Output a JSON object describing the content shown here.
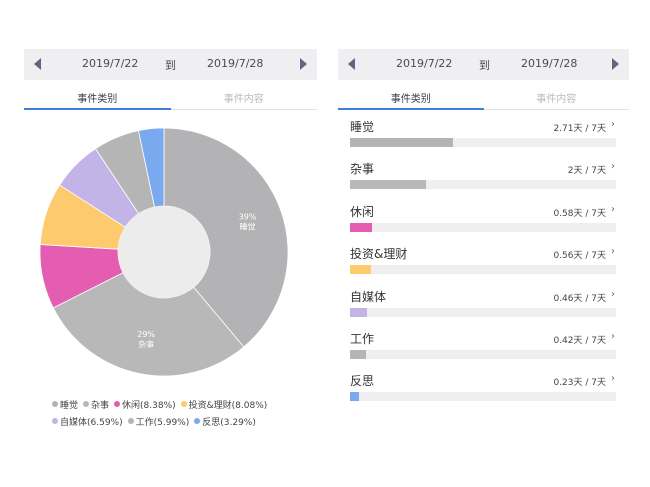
{
  "left": {
    "date_start": "2019/7/22",
    "date_to": "到",
    "date_end": "2019/7/28",
    "tab_active": "事件类别",
    "tab_inactive": "事件内容"
  },
  "right": {
    "date_start": "2019/7/22",
    "date_to": "到",
    "date_end": "2019/7/28",
    "tab_active": "事件类别",
    "tab_inactive": "事件内容"
  },
  "colors": {
    "accent": "#3b7fd9",
    "睡觉": "#b3b3b5",
    "杂事": "#b8b8b9",
    "休闲": "#e45db1",
    "投资&理财": "#fdcb6e",
    "自媒体": "#c3b4e8",
    "工作": "#b5b5b5",
    "反思": "#7aa9f0"
  },
  "chart_data": {
    "type": "pie",
    "style": "donut",
    "slices": [
      {
        "name": "睡觉",
        "legend": "睡觉",
        "value": 38.74,
        "label_pct": "39%",
        "label_name": "睡觉",
        "color": "#b3b3b5"
      },
      {
        "name": "杂事",
        "legend": "杂事",
        "value": 28.59,
        "label_pct": "29%",
        "label_name": "杂事",
        "color": "#b8b8b9"
      },
      {
        "name": "休闲",
        "legend": "休闲(8.38%)",
        "value": 8.38,
        "color": "#e45db1"
      },
      {
        "name": "投资&理财",
        "legend": "投资&理财(8.08%)",
        "value": 8.08,
        "color": "#fdcb6e"
      },
      {
        "name": "自媒体",
        "legend": "自媒体(6.59%)",
        "value": 6.59,
        "color": "#c3b4e8"
      },
      {
        "name": "工作",
        "legend": "工作(5.99%)",
        "value": 5.99,
        "color": "#b5b5b5"
      },
      {
        "name": "反思",
        "legend": "反思(3.29%)",
        "value": 3.29,
        "color": "#7aa9f0"
      }
    ],
    "legend_placement": "bottom"
  },
  "bars": [
    {
      "name": "睡觉",
      "value_text": "2.71天 / 7天",
      "days": 2.71,
      "total": 7,
      "color": "#b3b3b5"
    },
    {
      "name": "杂事",
      "value_text": "2天 / 7天",
      "days": 2.0,
      "total": 7,
      "color": "#b8b8b9"
    },
    {
      "name": "休闲",
      "value_text": "0.58天 / 7天",
      "days": 0.58,
      "total": 7,
      "color": "#e45db1"
    },
    {
      "name": "投资&理财",
      "value_text": "0.56天 / 7天",
      "days": 0.56,
      "total": 7,
      "color": "#fdcb6e"
    },
    {
      "name": "自媒体",
      "value_text": "0.46天 / 7天",
      "days": 0.46,
      "total": 7,
      "color": "#c3b4e8"
    },
    {
      "name": "工作",
      "value_text": "0.42天 / 7天",
      "days": 0.42,
      "total": 7,
      "color": "#b5b5b5"
    },
    {
      "name": "反思",
      "value_text": "0.23天 / 7天",
      "days": 0.23,
      "total": 7,
      "color": "#7aa9f0"
    }
  ],
  "chevron": "›"
}
